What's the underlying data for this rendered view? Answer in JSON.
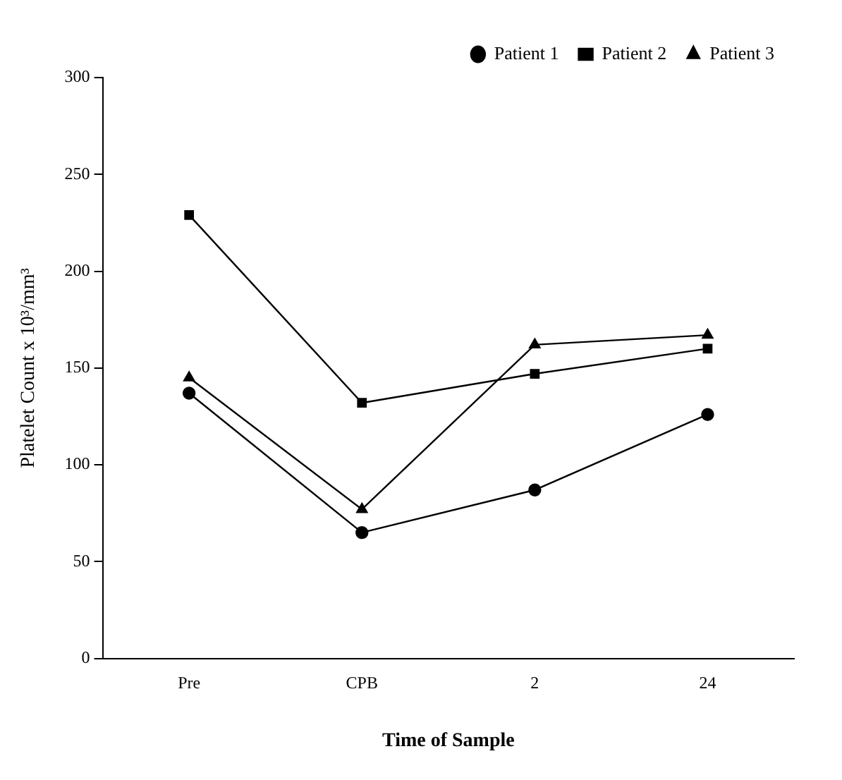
{
  "chart_data": {
    "type": "line",
    "xlabel": "Time of Sample",
    "ylabel": "Platelet Count x 10³/mm³",
    "categories": [
      "Pre",
      "CPB",
      "2",
      "24"
    ],
    "series": [
      {
        "name": "Patient 1",
        "color": "#000000",
        "marker": "circle",
        "values": [
          137,
          65,
          87,
          126
        ]
      },
      {
        "name": "Patient 2",
        "color": "#000000",
        "marker": "square",
        "values": [
          229,
          132,
          147,
          160
        ]
      },
      {
        "name": "Patient 3",
        "color": "#000000",
        "marker": "triangle",
        "values": [
          145,
          77,
          162,
          167
        ]
      }
    ],
    "ylim": [
      0,
      300
    ],
    "yticks": [
      0,
      50,
      100,
      150,
      200,
      250,
      300
    ],
    "grid": false,
    "legend": "top right"
  }
}
